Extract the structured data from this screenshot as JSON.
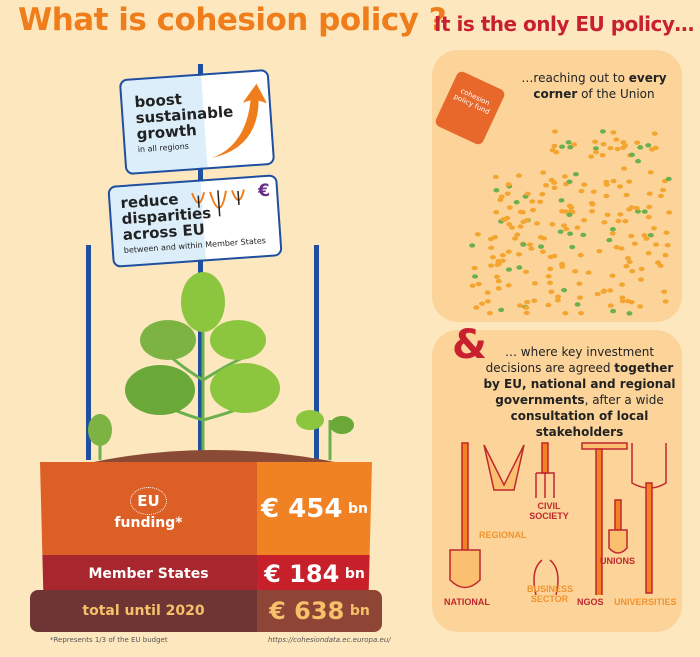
{
  "title": "What is cohesion policy ?",
  "right_title": "It is the only EU policy…",
  "signs": {
    "growth": {
      "line1": "boost",
      "line2": "sustainable",
      "line3": "growth",
      "sub": "in all regions"
    },
    "disparities": {
      "line1": "reduce",
      "line2": "disparities",
      "line3": "across EU",
      "sub": "between and within Member States",
      "euro": "€"
    }
  },
  "pot": {
    "eu_label": "EU",
    "funding_label": "funding*",
    "eu_value": "€ 454",
    "unit": "bn",
    "member_label": "Member States",
    "member_value": "€ 184",
    "total_label": "total until 2020",
    "total_value": "€ 638"
  },
  "footnote": "*Represents 1/3 of the EU budget",
  "source": "https://cohesiondata.ec.europa.eu/",
  "panel1": {
    "can_label": "cohesion policy fund",
    "text_pre": "…reaching out to ",
    "text_b1": "every corner",
    "text_post": " of the Union"
  },
  "panel2": {
    "amp": "&",
    "t1": "… where key investment decisions are agreed ",
    "b1": "together by EU, national and regional governments",
    "t2": ", after a wide ",
    "b2": "consultation of local stakeholders"
  },
  "stakeholders": [
    "NATIONAL",
    "REGIONAL",
    "CIVIL SOCIETY",
    "BUSINESS SECTOR",
    "NGOS",
    "UNIONS",
    "UNIVERSITIES"
  ],
  "colors": {
    "orange": "#f07d1b",
    "red": "#c8202e",
    "cream": "#fde7be",
    "panel": "#fcd49a",
    "blue": "#1f4fa0"
  }
}
